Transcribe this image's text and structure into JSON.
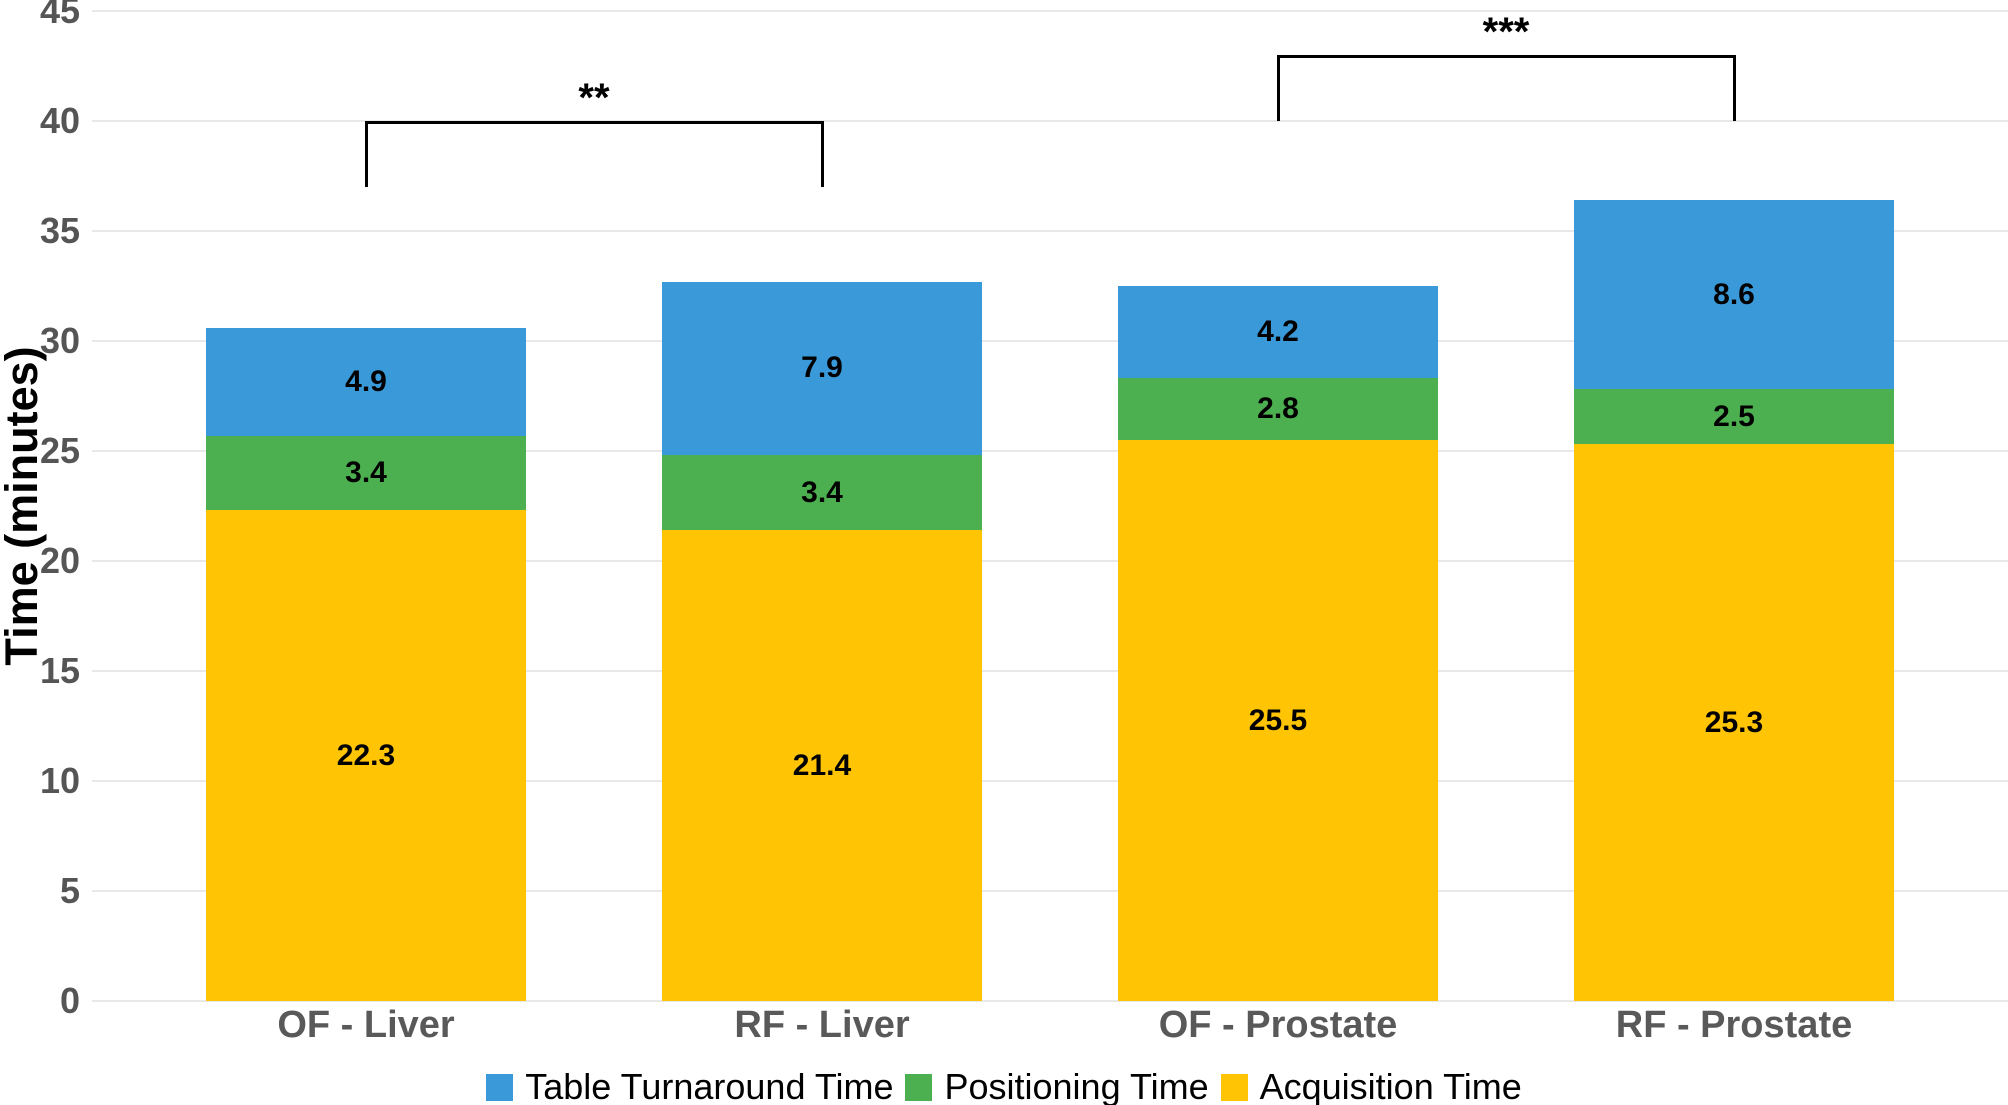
{
  "chart_data": {
    "type": "bar",
    "stacked": true,
    "title": "",
    "xlabel": "",
    "ylabel": "Time (minutes)",
    "ylim": [
      0,
      45
    ],
    "yticks": [
      0,
      5,
      10,
      15,
      20,
      25,
      30,
      35,
      40,
      45
    ],
    "grid": "horizontal",
    "legend_position": "bottom",
    "categories": [
      "OF - Liver",
      "RF - Liver",
      "OF - Prostate",
      "RF - Prostate"
    ],
    "series": [
      {
        "name": "Table Turnaround Time",
        "color": "#3A99D9",
        "values": [
          4.9,
          7.9,
          4.2,
          8.6
        ]
      },
      {
        "name": "Positioning Time",
        "color": "#4CAF50",
        "values": [
          3.4,
          3.4,
          2.8,
          2.5
        ]
      },
      {
        "name": "Acquisition Time",
        "color": "#FFC403",
        "values": [
          22.3,
          21.4,
          25.5,
          25.3
        ]
      }
    ],
    "stack_order_bottom_to_top": [
      "Acquisition Time",
      "Positioning Time",
      "Table Turnaround Time"
    ],
    "value_label_decimals": 1,
    "significance_brackets": [
      {
        "label": "**",
        "from_index": 0,
        "to_index": 1,
        "y_top": 40,
        "y_leg_end": 37
      },
      {
        "label": "***",
        "from_index": 2,
        "to_index": 3,
        "y_top": 43,
        "y_leg_end": 40
      }
    ],
    "colors": {
      "background": "#FFFFFF",
      "grid": "#E8E8E8",
      "tick_label": "#555555",
      "category_label": "#595959",
      "axis_title": "#000000",
      "value_label": "#000000",
      "bracket": "#000000",
      "legend_text": "#000000"
    }
  }
}
